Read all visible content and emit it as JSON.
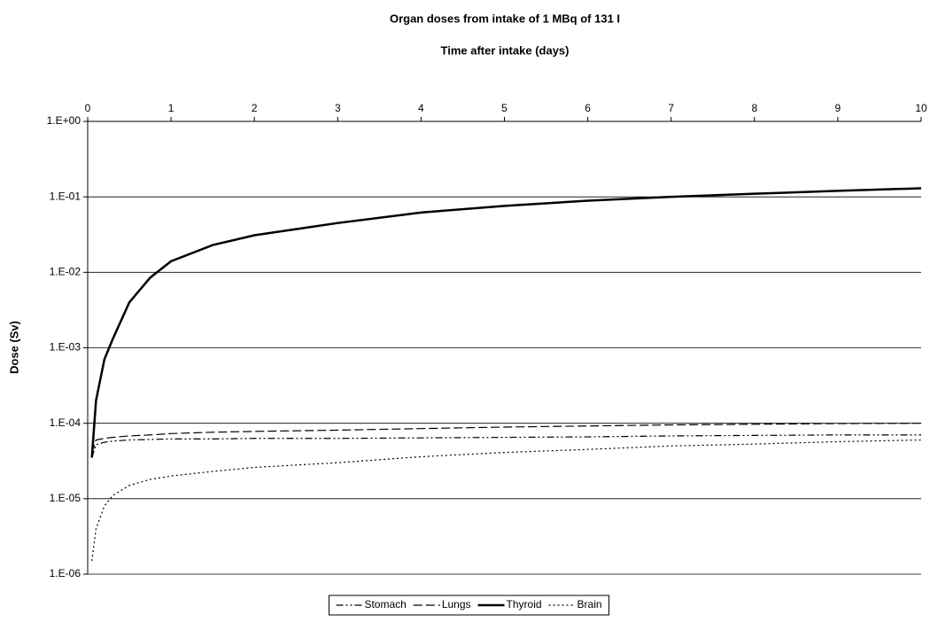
{
  "chart_data": {
    "type": "line",
    "title": "Organ doses from intake of 1 MBq of 131 I",
    "xlabel": "Time after intake (days)",
    "ylabel": "Dose (Sv)",
    "x": [
      0.05,
      0.1,
      0.2,
      0.3,
      0.5,
      0.75,
      1,
      1.5,
      2,
      3,
      4,
      5,
      6,
      7,
      8,
      9,
      10
    ],
    "series": [
      {
        "name": "Stomach",
        "color": "#000000",
        "style": "dash-dot-dot",
        "values": [
          3.5e-05,
          5.2e-05,
          5.6e-05,
          5.8e-05,
          6e-05,
          6.1e-05,
          6.2e-05,
          6.2e-05,
          6.3e-05,
          6.3e-05,
          6.4e-05,
          6.5e-05,
          6.6e-05,
          6.8e-05,
          6.9e-05,
          7e-05,
          7e-05
        ]
      },
      {
        "name": "Lungs",
        "color": "#000000",
        "style": "dashed",
        "values": [
          4e-05,
          6e-05,
          6.3e-05,
          6.5e-05,
          6.8e-05,
          7e-05,
          7.3e-05,
          7.6e-05,
          7.8e-05,
          8.1e-05,
          8.5e-05,
          8.9e-05,
          9.2e-05,
          9.5e-05,
          9.7e-05,
          9.9e-05,
          0.0001
        ]
      },
      {
        "name": "Thyroid",
        "color": "#000000",
        "style": "solid",
        "values": [
          3.5e-05,
          0.0002,
          0.0007,
          0.0013,
          0.004,
          0.0085,
          0.014,
          0.023,
          0.031,
          0.045,
          0.062,
          0.076,
          0.089,
          0.1,
          0.11,
          0.12,
          0.13
        ]
      },
      {
        "name": "Brain",
        "color": "#000000",
        "style": "dotted",
        "values": [
          1.5e-06,
          4e-06,
          8e-06,
          1.1e-05,
          1.5e-05,
          1.8e-05,
          2e-05,
          2.3e-05,
          2.6e-05,
          3e-05,
          3.6e-05,
          4.1e-05,
          4.5e-05,
          5e-05,
          5.3e-05,
          5.7e-05,
          6e-05
        ]
      }
    ],
    "xlim": [
      0,
      10
    ],
    "xticks": [
      0,
      1,
      2,
      3,
      4,
      5,
      6,
      7,
      8,
      9,
      10
    ],
    "ylim": [
      1e-06,
      1
    ],
    "yticks": [
      {
        "value": 1,
        "label": "1.E+00"
      },
      {
        "value": 0.1,
        "label": "1.E-01"
      },
      {
        "value": 0.01,
        "label": "1.E-02"
      },
      {
        "value": 0.001,
        "label": "1.E-03"
      },
      {
        "value": 0.0001,
        "label": "1.E-04"
      },
      {
        "value": 1e-05,
        "label": "1.E-05"
      },
      {
        "value": 1e-06,
        "label": "1.E-06"
      }
    ],
    "yscale": "log",
    "grid": true,
    "xaxis_position": "top",
    "legend": "bottom"
  }
}
